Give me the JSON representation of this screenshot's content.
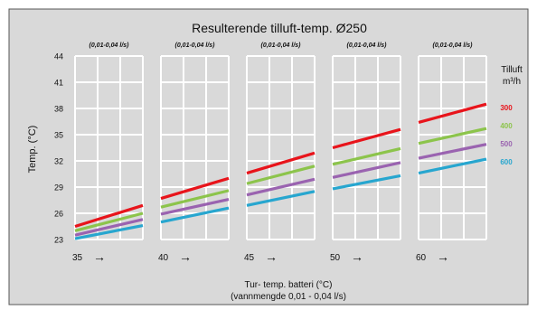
{
  "chart_data": {
    "type": "line",
    "title": "Resulterende tilluft-temp. Ø250",
    "ylabel": "Temp. (°C)",
    "xlabel": "Tur- temp. batteri (°C)",
    "xlabel_sub": "(vannmengde 0,01 - 0,04 l/s)",
    "ylim": [
      23,
      44
    ],
    "yticks": [
      23,
      26,
      29,
      32,
      35,
      38,
      41,
      44
    ],
    "arrow_glyph": "→",
    "legend": {
      "title_line1": "Tilluft",
      "title_line2": "m³/h",
      "items": [
        {
          "label": "300",
          "color": "#e8141b"
        },
        {
          "label": "400",
          "color": "#8cc44b"
        },
        {
          "label": "500",
          "color": "#9a63b0"
        },
        {
          "label": "600",
          "color": "#27a6cf"
        }
      ]
    },
    "panels": [
      {
        "label": "(0,01-0,04 l/s)",
        "x_label": "35",
        "series": [
          {
            "name": "300",
            "color": "#e8141b",
            "values": [
              24.5,
              26.9
            ]
          },
          {
            "name": "400",
            "color": "#8cc44b",
            "values": [
              24.0,
              26.0
            ]
          },
          {
            "name": "500",
            "color": "#9a63b0",
            "values": [
              23.5,
              25.3
            ]
          },
          {
            "name": "600",
            "color": "#27a6cf",
            "values": [
              23.1,
              24.6
            ]
          }
        ]
      },
      {
        "label": "(0,01-0,04 l/s)",
        "x_label": "40",
        "series": [
          {
            "name": "300",
            "color": "#e8141b",
            "values": [
              27.7,
              30.0
            ]
          },
          {
            "name": "400",
            "color": "#8cc44b",
            "values": [
              26.7,
              28.6
            ]
          },
          {
            "name": "500",
            "color": "#9a63b0",
            "values": [
              25.9,
              27.6
            ]
          },
          {
            "name": "600",
            "color": "#27a6cf",
            "values": [
              25.0,
              26.6
            ]
          }
        ]
      },
      {
        "label": "(0,01-0,04 l/s)",
        "x_label": "45",
        "series": [
          {
            "name": "300",
            "color": "#e8141b",
            "values": [
              30.6,
              32.9
            ]
          },
          {
            "name": "400",
            "color": "#8cc44b",
            "values": [
              29.4,
              31.4
            ]
          },
          {
            "name": "500",
            "color": "#9a63b0",
            "values": [
              28.1,
              29.9
            ]
          },
          {
            "name": "600",
            "color": "#27a6cf",
            "values": [
              26.9,
              28.5
            ]
          }
        ]
      },
      {
        "label": "(0,01-0,04 l/s)",
        "x_label": "50",
        "series": [
          {
            "name": "300",
            "color": "#e8141b",
            "values": [
              33.5,
              35.6
            ]
          },
          {
            "name": "400",
            "color": "#8cc44b",
            "values": [
              31.6,
              33.4
            ]
          },
          {
            "name": "500",
            "color": "#9a63b0",
            "values": [
              30.1,
              31.8
            ]
          },
          {
            "name": "600",
            "color": "#27a6cf",
            "values": [
              28.8,
              30.3
            ]
          }
        ]
      },
      {
        "label": "(0,01-0,04 l/s)",
        "x_label": "60",
        "series": [
          {
            "name": "300",
            "color": "#e8141b",
            "values": [
              36.4,
              38.5
            ]
          },
          {
            "name": "400",
            "color": "#8cc44b",
            "values": [
              34.0,
              35.7
            ]
          },
          {
            "name": "500",
            "color": "#9a63b0",
            "values": [
              32.3,
              33.9
            ]
          },
          {
            "name": "600",
            "color": "#27a6cf",
            "values": [
              30.6,
              32.2
            ]
          }
        ]
      }
    ]
  }
}
